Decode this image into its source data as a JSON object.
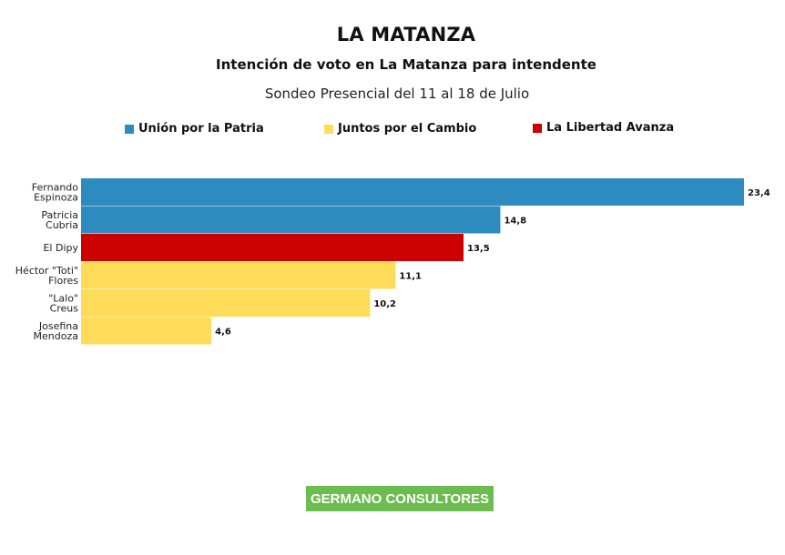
{
  "title": "LA MATANZA",
  "subtitle": "Intención de voto en La Matanza para intendente",
  "note": "Sondeo Presencial del 11 al 18 de Julio",
  "legend": [
    {
      "label": "Unión por la Patria",
      "color": "#2e8bc0"
    },
    {
      "label": "Juntos por el Cambio",
      "color": "#fedb58"
    },
    {
      "label": "La Libertad Avanza",
      "color": "#cc0000"
    }
  ],
  "footer": "GERMANO CONSULTORES",
  "chart_data": {
    "type": "bar",
    "orientation": "horizontal",
    "xlim": [
      0,
      23.4
    ],
    "categories": [
      [
        "Fernando",
        "Espinoza"
      ],
      [
        "Patricia",
        "Cubria"
      ],
      [
        "El Dipy"
      ],
      [
        "Héctor \"Toti\"",
        "Flores"
      ],
      [
        "\"Lalo\"",
        "Creus"
      ],
      [
        "Josefina",
        "Mendoza"
      ]
    ],
    "values": [
      23.4,
      14.8,
      13.5,
      11.1,
      10.2,
      4.6
    ],
    "value_labels": [
      "23,4",
      "14,8",
      "13,5",
      "11,1",
      "10,2",
      "4,6"
    ],
    "bar_colors": [
      "#2e8bc0",
      "#2e8bc0",
      "#cc0000",
      "#fedb58",
      "#fedb58",
      "#fedb58"
    ],
    "legend_placement": "top",
    "grid": false
  }
}
